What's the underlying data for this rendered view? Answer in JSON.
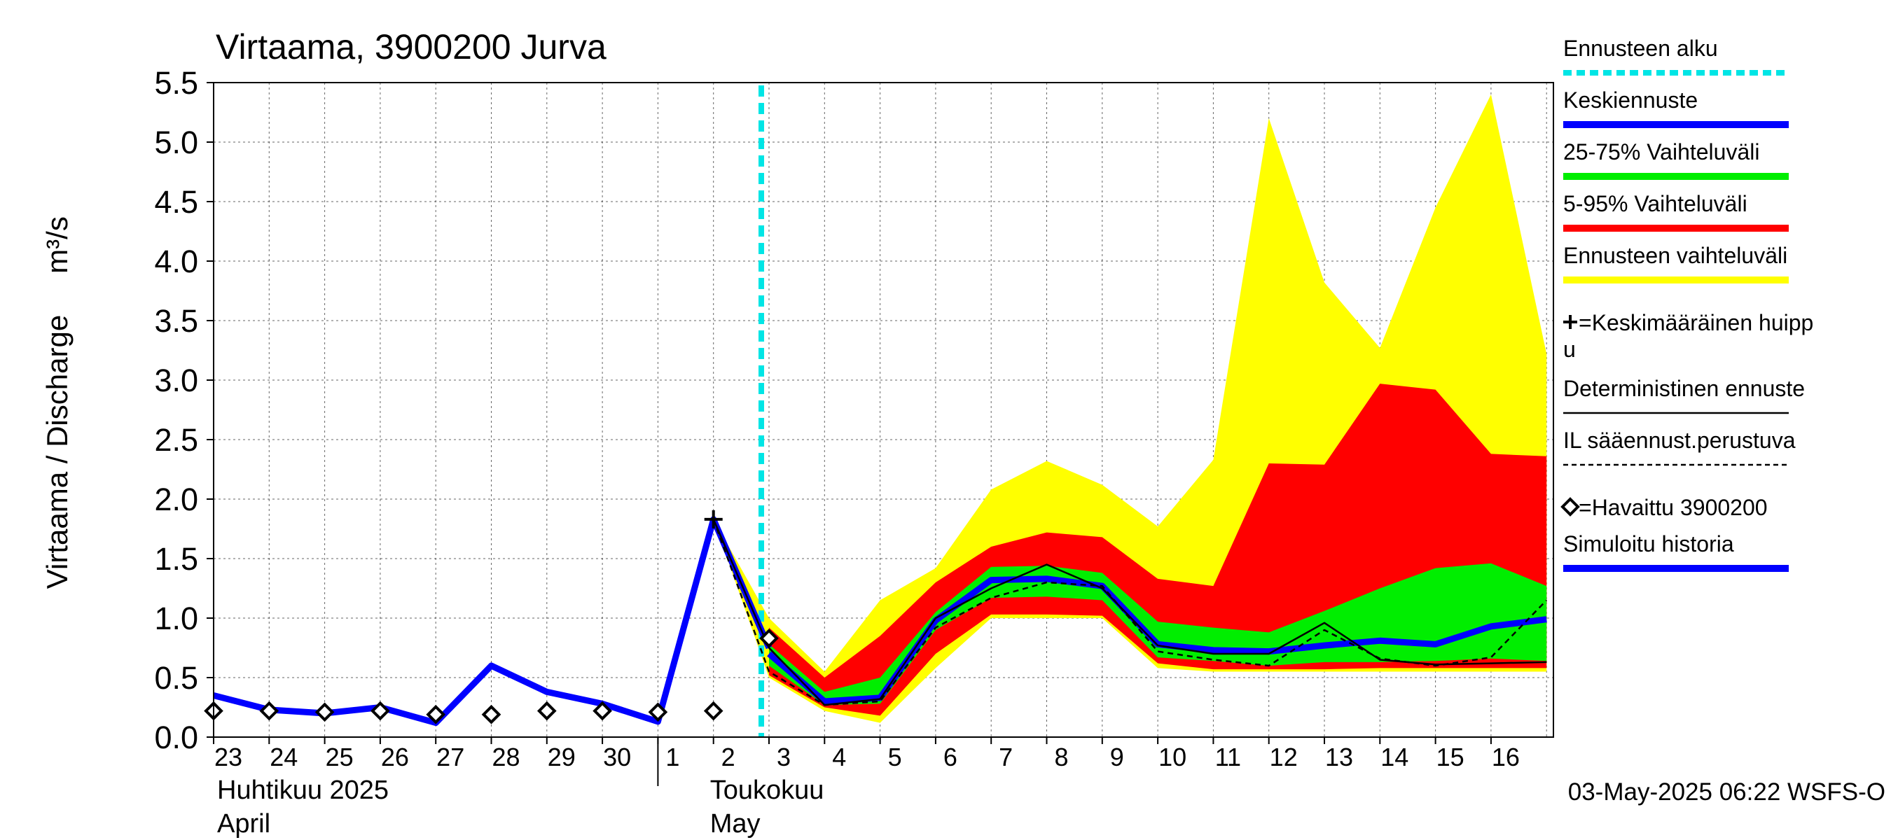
{
  "chart_data": {
    "type": "line",
    "title": "Virtaama, 3900200 Jurva",
    "ylabel": "Virtaama / Discharge",
    "yunit": "m³/s",
    "ylim": [
      0,
      5.5
    ],
    "yticks": [
      "0.0",
      "0.5",
      "1.0",
      "1.5",
      "2.0",
      "2.5",
      "3.0",
      "3.5",
      "4.0",
      "4.5",
      "5.0",
      "5.5"
    ],
    "x_days": [
      "2025-04-23",
      "2025-04-24",
      "2025-04-25",
      "2025-04-26",
      "2025-04-27",
      "2025-04-28",
      "2025-04-29",
      "2025-04-30",
      "2025-05-01",
      "2025-05-02",
      "2025-05-03",
      "2025-05-04",
      "2025-05-05",
      "2025-05-06",
      "2025-05-07",
      "2025-05-08",
      "2025-05-09",
      "2025-05-10",
      "2025-05-11",
      "2025-05-12",
      "2025-05-13",
      "2025-05-14",
      "2025-05-15",
      "2025-05-16"
    ],
    "xtick_labels": [
      "23",
      "24",
      "25",
      "26",
      "27",
      "28",
      "29",
      "30",
      "1",
      "2",
      "3",
      "4",
      "5",
      "6",
      "7",
      "8",
      "9",
      "10",
      "11",
      "12",
      "13",
      "14",
      "15",
      "16"
    ],
    "month_labels": [
      {
        "fi": "Huhtikuu  2025",
        "en": "April",
        "start": "2025-04-23"
      },
      {
        "fi": "Toukokuu",
        "en": "May",
        "start": "2025-05-02"
      }
    ],
    "forecast_start": "2025-05-03",
    "grid": true,
    "legend_position": "right",
    "series": [
      {
        "name": "Simuloitu historia",
        "color": "#0000ff",
        "x": [
          "2025-04-23",
          "2025-04-24",
          "2025-04-25",
          "2025-04-26",
          "2025-04-27",
          "2025-04-28",
          "2025-04-29",
          "2025-04-30",
          "2025-05-01",
          "2025-05-02",
          "2025-05-03"
        ],
        "values": [
          0.35,
          0.23,
          0.2,
          0.25,
          0.12,
          0.6,
          0.38,
          0.28,
          0.13,
          1.83,
          0.75
        ]
      },
      {
        "name": "Keskiennuste",
        "color": "#0000ff",
        "x": [
          "2025-05-03",
          "2025-05-04",
          "2025-05-05",
          "2025-05-06",
          "2025-05-07",
          "2025-05-08",
          "2025-05-09",
          "2025-05-10",
          "2025-05-11",
          "2025-05-12",
          "2025-05-13",
          "2025-05-14",
          "2025-05-15",
          "2025-05-16",
          "2025-05-17"
        ],
        "values": [
          0.7,
          0.3,
          0.33,
          0.98,
          1.32,
          1.33,
          1.27,
          0.78,
          0.73,
          0.72,
          0.77,
          0.81,
          0.78,
          0.93,
          0.99
        ]
      },
      {
        "name": "Deterministinen ennuste",
        "color": "#000000",
        "x": [
          "2025-05-02",
          "2025-05-03",
          "2025-05-04",
          "2025-05-05",
          "2025-05-06",
          "2025-05-07",
          "2025-05-08",
          "2025-05-09",
          "2025-05-10",
          "2025-05-11",
          "2025-05-12",
          "2025-05-13",
          "2025-05-14",
          "2025-05-15",
          "2025-05-16",
          "2025-05-17"
        ],
        "values": [
          1.83,
          0.75,
          0.27,
          0.32,
          1.0,
          1.25,
          1.45,
          1.25,
          0.77,
          0.7,
          0.7,
          0.96,
          0.65,
          0.61,
          0.62,
          0.63
        ]
      },
      {
        "name": "IL sääennust.perustuva",
        "color": "#000000",
        "x": [
          "2025-05-02",
          "2025-05-03",
          "2025-05-04",
          "2025-05-05",
          "2025-05-06",
          "2025-05-07",
          "2025-05-08",
          "2025-05-09",
          "2025-05-10",
          "2025-05-11",
          "2025-05-12",
          "2025-05-13",
          "2025-05-14",
          "2025-05-15",
          "2025-05-16",
          "2025-05-17"
        ],
        "values": [
          1.83,
          0.55,
          0.27,
          0.3,
          0.92,
          1.17,
          1.3,
          1.27,
          0.72,
          0.65,
          0.6,
          0.9,
          0.66,
          0.6,
          0.67,
          1.15
        ]
      },
      {
        "name": "=Havaittu 3900200",
        "color": "#000000",
        "x": [
          "2025-04-23",
          "2025-04-24",
          "2025-04-25",
          "2025-04-26",
          "2025-04-27",
          "2025-04-28",
          "2025-04-29",
          "2025-04-30",
          "2025-05-01",
          "2025-05-02",
          "2025-05-03"
        ],
        "values": [
          0.22,
          0.22,
          0.21,
          0.22,
          0.19,
          0.19,
          0.22,
          0.22,
          0.21,
          0.22,
          0.83
        ]
      },
      {
        "name": "=Keskimääräinen huippu",
        "color": "#000000",
        "x": [
          "2025-05-02"
        ],
        "values": [
          1.83
        ]
      }
    ],
    "bands": [
      {
        "name": "Ennusteen vaihteluväli",
        "color": "#ffff00",
        "x": [
          "2025-05-02",
          "2025-05-03",
          "2025-05-04",
          "2025-05-05",
          "2025-05-06",
          "2025-05-07",
          "2025-05-08",
          "2025-05-09",
          "2025-05-10",
          "2025-05-11",
          "2025-05-12",
          "2025-05-13",
          "2025-05-14",
          "2025-05-15",
          "2025-05-16",
          "2025-05-17"
        ],
        "upper": [
          1.83,
          1.0,
          0.55,
          1.15,
          1.42,
          2.08,
          2.32,
          2.12,
          1.77,
          2.33,
          5.2,
          3.82,
          3.27,
          4.45,
          5.4,
          3.22
        ],
        "lower": [
          1.83,
          0.5,
          0.22,
          0.12,
          0.58,
          1.0,
          1.0,
          1.0,
          0.58,
          0.55,
          0.55,
          0.55,
          0.55,
          0.55,
          0.55,
          0.55
        ]
      },
      {
        "name": "5-95% Vaihteluväli",
        "color": "#ff0000",
        "x": [
          "2025-05-03",
          "2025-05-04",
          "2025-05-05",
          "2025-05-06",
          "2025-05-07",
          "2025-05-08",
          "2025-05-09",
          "2025-05-10",
          "2025-05-11",
          "2025-05-12",
          "2025-05-13",
          "2025-05-14",
          "2025-05-15",
          "2025-05-16",
          "2025-05-17"
        ],
        "upper": [
          0.92,
          0.5,
          0.85,
          1.3,
          1.6,
          1.72,
          1.68,
          1.33,
          1.27,
          2.3,
          2.29,
          2.97,
          2.92,
          2.38,
          2.36
        ],
        "lower": [
          0.52,
          0.25,
          0.18,
          0.7,
          1.03,
          1.03,
          1.02,
          0.62,
          0.57,
          0.57,
          0.57,
          0.58,
          0.58,
          0.58,
          0.58
        ]
      },
      {
        "name": "25-75% Vaihteluväli",
        "color": "#00ee00",
        "x": [
          "2025-05-03",
          "2025-05-04",
          "2025-05-05",
          "2025-05-06",
          "2025-05-07",
          "2025-05-08",
          "2025-05-09",
          "2025-05-10",
          "2025-05-11",
          "2025-05-12",
          "2025-05-13",
          "2025-05-14",
          "2025-05-15",
          "2025-05-16",
          "2025-05-17"
        ],
        "upper": [
          0.78,
          0.38,
          0.5,
          1.05,
          1.43,
          1.44,
          1.38,
          0.97,
          0.92,
          0.88,
          1.06,
          1.25,
          1.42,
          1.46,
          1.27
        ],
        "lower": [
          0.6,
          0.27,
          0.28,
          0.9,
          1.17,
          1.18,
          1.15,
          0.67,
          0.64,
          0.6,
          0.63,
          0.63,
          0.64,
          0.66,
          0.64
        ]
      }
    ]
  },
  "legend": [
    {
      "label": "Ennusteen alku",
      "style": "dashed-cyan",
      "color": "#00e5e5"
    },
    {
      "label": "Keskiennuste",
      "style": "thick-line",
      "color": "#0000ff"
    },
    {
      "label": "25-75% Vaihteluväli",
      "style": "thick-line",
      "color": "#00ee00"
    },
    {
      "label": "5-95% Vaihteluväli",
      "style": "thick-line",
      "color": "#ff0000"
    },
    {
      "label": "Ennusteen vaihteluväli",
      "style": "thick-line",
      "color": "#ffff00"
    },
    {
      "label": "=Keskimääräinen huipp",
      "label2": "u",
      "style": "plus-marker",
      "color": "#000000"
    },
    {
      "label": "Deterministinen ennuste",
      "style": "thin-line",
      "color": "#000000"
    },
    {
      "label": "IL sääennust.perustuva",
      "style": "dashed-line",
      "color": "#000000"
    },
    {
      "label": "=Havaittu 3900200",
      "style": "diamond-marker",
      "color": "#000000"
    },
    {
      "label": "Simuloitu historia",
      "style": "thick-line",
      "color": "#0000ff"
    }
  ],
  "footer": "03-May-2025 06:22 WSFS-O"
}
